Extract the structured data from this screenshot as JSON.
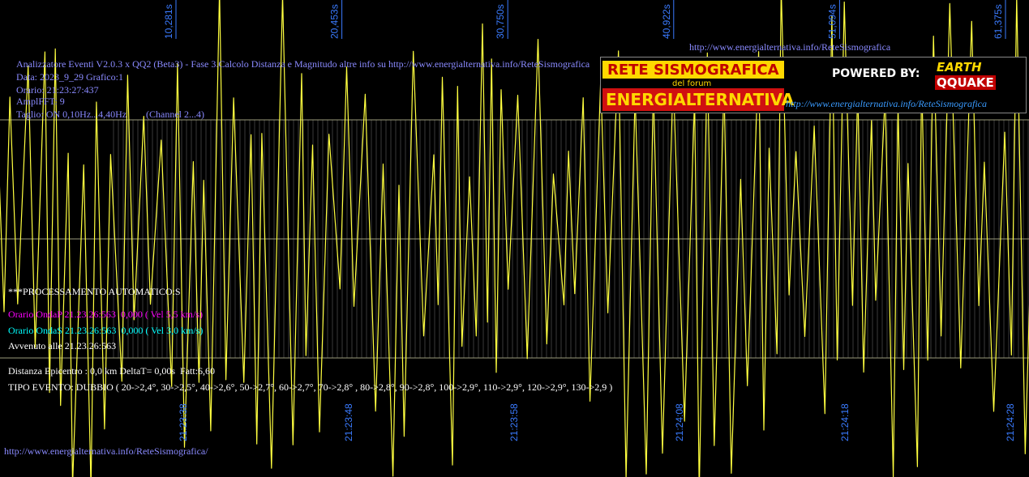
{
  "top_url": "http://www.energialternativa.info/ReteSismografica",
  "header": {
    "lines": [
      "Analizzatore Eventi V2.0.3 x QQ2 (Beta3) - Fase 3.Calcolo Distanza e Magnitudo altre info su http://www.energialternativa.info/ReteSismografica",
      "Data: 2023_9_29 Grafico:1",
      "Orario: 21:23:27:437",
      "AmplFFT: 9",
      "Taglio: ON 0,10Hz...4,40Hz"
    ],
    "channel": "(Channel 2...4)"
  },
  "logo": {
    "title": "RETE SISMOGRAFICA",
    "sub": "del forum",
    "name": "ENERGIALTERNATIVA",
    "powered": "POWERED BY:",
    "brand1": "EARTH",
    "brand2": "QQUAKE",
    "url": "http://www.energialternativa.info/ReteSismografica"
  },
  "top_times": [
    "10,281s",
    "20,453s",
    "30,750s",
    "40,922s",
    "51,094s",
    "61,375s"
  ],
  "bottom_times": [
    "21:23:38",
    "21:23:48",
    "21:23:58",
    "21:24:08",
    "21:24:18",
    "21:24:28"
  ],
  "report": {
    "title": "***PROCESSAMENTO AUTOMATICO:S",
    "onda_p": "Orario OndaP 21.23.26:563  0,000 ( Vel 5,5 km/s)",
    "onda_s": "Orario OndaS 21.23.26:563  0,000 ( Vel 3,0 km/s)",
    "avvenuto": "Avvenuto alle 21.23.26:563",
    "distanza": "Distanza Epicentro : 0,0 km DeltaT= 0,00s  Fatt:6,60",
    "tipo": "TIPO EVENTO: DUBBIO ( 20->2,4°, 30->2,5°, 40->2,6°, 50->2,7°, 60->2,7°, 70->2,8° , 80->2,8°, 90->2,8°, 100->2,9°, 110->2,9°, 120->2,9°, 130->2,9 )"
  },
  "footer_url": "http://www.energialternativa.info/ReteSismografica/"
}
